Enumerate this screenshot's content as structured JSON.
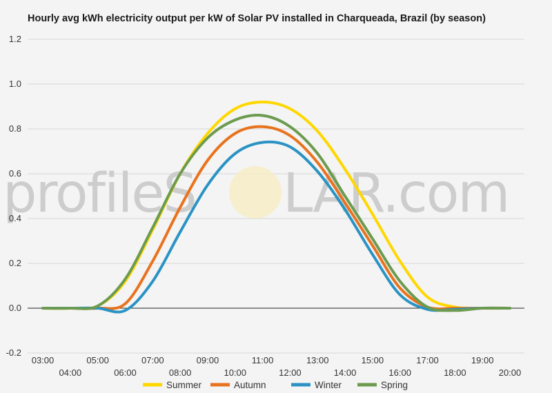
{
  "chart_data": {
    "type": "line",
    "title": "Hourly avg kWh electricity output per kW of Solar PV installed in Charqueada, Brazil (by season)",
    "xlabel": "",
    "ylabel": "",
    "x": [
      "03:00",
      "04:00",
      "05:00",
      "06:00",
      "07:00",
      "08:00",
      "09:00",
      "10:00",
      "11:00",
      "12:00",
      "13:00",
      "14:00",
      "15:00",
      "16:00",
      "17:00",
      "18:00",
      "19:00",
      "20:00"
    ],
    "ylim": [
      -0.2,
      1.2
    ],
    "yticks": [
      "-0.2",
      "0.0",
      "0.2",
      "0.4",
      "0.6",
      "0.8",
      "1.0",
      "1.2"
    ],
    "grid": true,
    "legend_position": "bottom",
    "series": [
      {
        "name": "Summer",
        "color": "#FFD700",
        "values": [
          0,
          0,
          0.01,
          0.12,
          0.35,
          0.6,
          0.78,
          0.89,
          0.92,
          0.89,
          0.79,
          0.62,
          0.42,
          0.21,
          0.05,
          0.005,
          0,
          0
        ]
      },
      {
        "name": "Autumn",
        "color": "#E8731F",
        "values": [
          0,
          0,
          0,
          0.02,
          0.21,
          0.45,
          0.66,
          0.78,
          0.81,
          0.77,
          0.65,
          0.47,
          0.28,
          0.09,
          0.005,
          0,
          0,
          0
        ]
      },
      {
        "name": "Winter",
        "color": "#2A93C4",
        "values": [
          0,
          0,
          0,
          -0.01,
          0.12,
          0.34,
          0.55,
          0.69,
          0.74,
          0.72,
          0.61,
          0.44,
          0.24,
          0.06,
          -0.005,
          -0.005,
          0,
          0
        ]
      },
      {
        "name": "Spring",
        "color": "#6C9B4F",
        "values": [
          0,
          0,
          0.01,
          0.13,
          0.36,
          0.6,
          0.76,
          0.84,
          0.86,
          0.81,
          0.69,
          0.5,
          0.31,
          0.12,
          0.005,
          -0.01,
          0,
          0
        ]
      }
    ]
  },
  "watermark": {
    "text_left": "profileS",
    "text_right": "LAR.com"
  }
}
